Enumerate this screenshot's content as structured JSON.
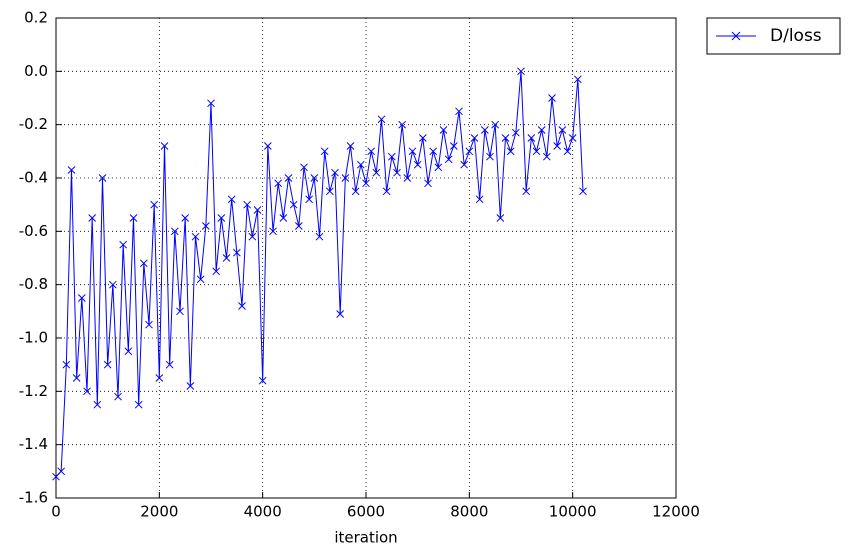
{
  "chart_data": {
    "type": "line",
    "xlabel": "iteration",
    "x": [
      0,
      100,
      200,
      300,
      400,
      500,
      600,
      700,
      800,
      900,
      1000,
      1100,
      1200,
      1300,
      1400,
      1500,
      1600,
      1700,
      1800,
      1900,
      2000,
      2100,
      2200,
      2300,
      2400,
      2500,
      2600,
      2700,
      2800,
      2900,
      3000,
      3100,
      3200,
      3300,
      3400,
      3500,
      3600,
      3700,
      3800,
      3900,
      4000,
      4100,
      4200,
      4300,
      4400,
      4500,
      4600,
      4700,
      4800,
      4900,
      5000,
      5100,
      5200,
      5300,
      5400,
      5500,
      5600,
      5700,
      5800,
      5900,
      6000,
      6100,
      6200,
      6300,
      6400,
      6500,
      6600,
      6700,
      6800,
      6900,
      7000,
      7100,
      7200,
      7300,
      7400,
      7500,
      7600,
      7700,
      7800,
      7900,
      8000,
      8100,
      8200,
      8300,
      8400,
      8500,
      8600,
      8700,
      8800,
      8900,
      9000,
      9100,
      9200,
      9300,
      9400,
      9500,
      9600,
      9700,
      9800,
      9900,
      10000,
      10100,
      10200
    ],
    "series": [
      {
        "name": "D/loss",
        "color": "#0000ff",
        "values": [
          -1.52,
          -1.5,
          -1.1,
          -0.37,
          -1.15,
          -0.85,
          -1.2,
          -0.55,
          -1.25,
          -0.4,
          -1.1,
          -0.8,
          -1.22,
          -0.65,
          -1.05,
          -0.55,
          -1.25,
          -0.72,
          -0.95,
          -0.5,
          -1.15,
          -0.28,
          -1.1,
          -0.6,
          -0.9,
          -0.55,
          -1.18,
          -0.62,
          -0.78,
          -0.58,
          -0.12,
          -0.75,
          -0.55,
          -0.7,
          -0.48,
          -0.68,
          -0.88,
          -0.5,
          -0.62,
          -0.52,
          -1.16,
          -0.28,
          -0.6,
          -0.42,
          -0.55,
          -0.4,
          -0.5,
          -0.58,
          -0.36,
          -0.48,
          -0.4,
          -0.62,
          -0.3,
          -0.45,
          -0.38,
          -0.91,
          -0.4,
          -0.28,
          -0.45,
          -0.35,
          -0.42,
          -0.3,
          -0.38,
          -0.18,
          -0.45,
          -0.32,
          -0.38,
          -0.2,
          -0.4,
          -0.3,
          -0.35,
          -0.25,
          -0.42,
          -0.3,
          -0.36,
          -0.22,
          -0.33,
          -0.28,
          -0.15,
          -0.35,
          -0.3,
          -0.25,
          -0.48,
          -0.22,
          -0.32,
          -0.2,
          -0.55,
          -0.25,
          -0.3,
          -0.23,
          0.0,
          -0.45,
          -0.25,
          -0.3,
          -0.22,
          -0.32,
          -0.1,
          -0.28,
          -0.22,
          -0.3,
          -0.25,
          -0.03,
          -0.45
        ]
      }
    ],
    "xlim": [
      0,
      12000
    ],
    "xticks": [
      0,
      2000,
      4000,
      6000,
      8000,
      10000,
      12000
    ],
    "ylim": [
      -1.6,
      0.2
    ],
    "yticks": [
      -1.6,
      -1.4,
      -1.2,
      {
        "value": -1,
        "label": "-1.0"
      },
      -0.8,
      -0.6,
      -0.4,
      -0.2,
      {
        "value": 0,
        "label": "0.0"
      },
      0.2
    ],
    "grid": true,
    "legend": "outside upper right"
  }
}
